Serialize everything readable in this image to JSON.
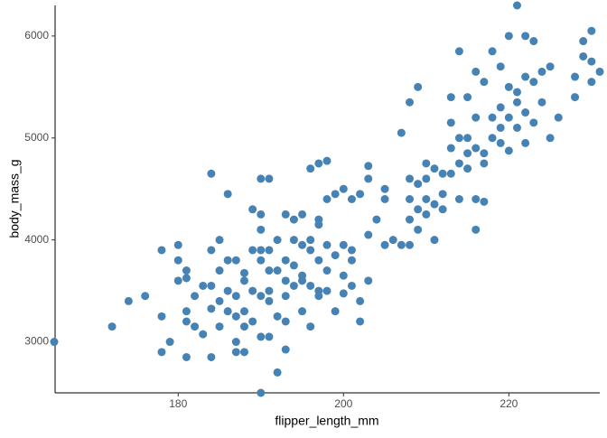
{
  "chart_data": {
    "type": "scatter",
    "x_label": "flipper_length_mm",
    "y_label": "body_mass_g",
    "xlim": [
      165,
      231
    ],
    "ylim": [
      2500,
      6300
    ],
    "xticks": [
      180,
      200,
      220
    ],
    "yticks": [
      3000,
      4000,
      5000,
      6000
    ],
    "grid": false,
    "series": [
      {
        "color": "#4682b4",
        "x": [
          165,
          172,
          174,
          176,
          178,
          178,
          178,
          179,
          180,
          180,
          180,
          181,
          181,
          181,
          181,
          181,
          182,
          182,
          183,
          183,
          184,
          184,
          184,
          184,
          184,
          185,
          185,
          185,
          185,
          186,
          186,
          186,
          186,
          187,
          187,
          187,
          187,
          187,
          188,
          188,
          188,
          188,
          189,
          189,
          189,
          189,
          190,
          190,
          190,
          190,
          190,
          190,
          190,
          191,
          191,
          191,
          191,
          191,
          191,
          192,
          192,
          192,
          192,
          193,
          193,
          193,
          193,
          193,
          193,
          194,
          194,
          194,
          194,
          195,
          195,
          195,
          195,
          195,
          196,
          196,
          196,
          196,
          196,
          197,
          197,
          197,
          197,
          197,
          197,
          198,
          198,
          198,
          198,
          198,
          199,
          199,
          199,
          200,
          200,
          200,
          200,
          201,
          201,
          201,
          201,
          202,
          202,
          202,
          203,
          203,
          203,
          203,
          205,
          205,
          205,
          206,
          207,
          207,
          208,
          208,
          208,
          208,
          208,
          209,
          209,
          209,
          209,
          210,
          210,
          210,
          210,
          211,
          211,
          211,
          212,
          212,
          213,
          213,
          213,
          214,
          214,
          214,
          215,
          215,
          215,
          215,
          216,
          216,
          216,
          216,
          217,
          217,
          217,
          218,
          218,
          218,
          219,
          219,
          219,
          220,
          220,
          220,
          220,
          221,
          221,
          221,
          221,
          222,
          222,
          222,
          222,
          223,
          223,
          223,
          224,
          224,
          225,
          225,
          226,
          228,
          228,
          229,
          229,
          230,
          230,
          230,
          231,
          190,
          188,
          204,
          212,
          216,
          217,
          219,
          213,
          214
        ],
        "values": [
          3000,
          3150,
          3400,
          3450,
          3900,
          3250,
          2900,
          3000,
          3950,
          3800,
          3600,
          3700,
          3625,
          3300,
          3200,
          2850,
          3450,
          3150,
          3550,
          3075,
          4650,
          3900,
          3550,
          3325,
          2850,
          4000,
          3700,
          3400,
          3150,
          3800,
          4450,
          3500,
          3300,
          3800,
          3450,
          3250,
          3000,
          2900,
          3300,
          3600,
          2900,
          3150,
          3200,
          3500,
          3900,
          4300,
          4600,
          4250,
          3900,
          3800,
          3450,
          3050,
          2500,
          4600,
          3900,
          3700,
          3400,
          3050,
          3500,
          4000,
          3250,
          2700,
          3700,
          4250,
          3800,
          3600,
          3450,
          3200,
          2925,
          4200,
          4000,
          3750,
          3550,
          4250,
          3950,
          3600,
          3300,
          3650,
          4700,
          4000,
          3900,
          3550,
          3150,
          4750,
          4200,
          4150,
          3800,
          3450,
          3500,
          4775,
          4400,
          3950,
          3700,
          3500,
          4450,
          3850,
          3300,
          4500,
          3950,
          3650,
          3475,
          4400,
          3900,
          3550,
          3800,
          4450,
          3400,
          3200,
          4725,
          4050,
          4600,
          3600,
          4500,
          4400,
          3950,
          4000,
          5050,
          3950,
          5350,
          4600,
          4200,
          4400,
          3950,
          5500,
          4550,
          4300,
          4100,
          4600,
          4400,
          4250,
          4750,
          4700,
          4350,
          4000,
          4650,
          4450,
          5400,
          4900,
          4650,
          5850,
          5000,
          4750,
          5400,
          5000,
          4700,
          4850,
          5650,
          5200,
          4400,
          4900,
          5550,
          4850,
          4750,
          5850,
          5200,
          5000,
          5700,
          5300,
          4950,
          6000,
          5500,
          5200,
          4875,
          6300,
          5450,
          5350,
          5100,
          6000,
          5600,
          5250,
          4950,
          5950,
          5550,
          5150,
          5650,
          5350,
          5700,
          5000,
          5200,
          5600,
          5400,
          5950,
          5800,
          6050,
          5550,
          5750,
          5650,
          4100,
          3675,
          4200,
          4300,
          4100,
          4375,
          5100,
          5150,
          4400
        ]
      }
    ]
  }
}
